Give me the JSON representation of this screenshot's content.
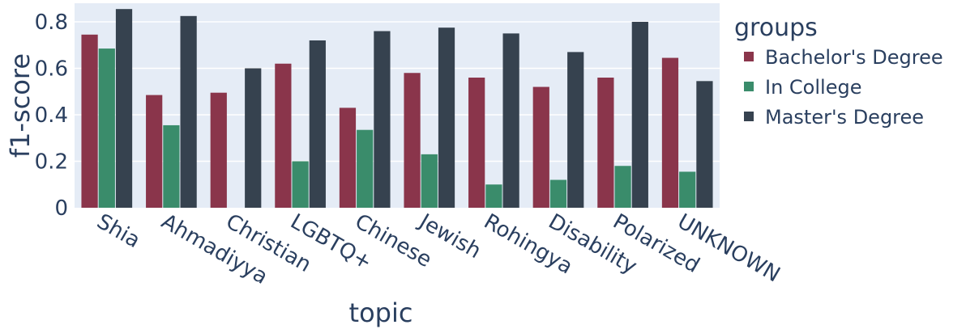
{
  "chart_data": {
    "type": "bar",
    "xlabel": "topic",
    "ylabel": "f1-score",
    "ylim": [
      0,
      0.88
    ],
    "yticks": [
      0,
      0.2,
      0.4,
      0.6,
      0.8
    ],
    "ytick_labels": [
      "0",
      "0.2",
      "0.4",
      "0.6",
      "0.8"
    ],
    "grid": true,
    "legend_title": "groups",
    "legend_position": "right",
    "categories": [
      "Shia",
      "Ahmadiyya",
      "Christian",
      "LGBTQ+",
      "Chinese",
      "Jewish",
      "Rohingya",
      "Disability",
      "Polarized",
      "UNKNOWN"
    ],
    "series": [
      {
        "name": "Bachelor's Degree",
        "color": "#8a354b",
        "values": [
          0.745,
          0.485,
          0.495,
          0.62,
          0.43,
          0.58,
          0.56,
          0.52,
          0.56,
          0.645
        ]
      },
      {
        "name": "In College",
        "color": "#3a8c6b",
        "values": [
          0.685,
          0.355,
          null,
          0.2,
          0.335,
          0.23,
          0.1,
          0.12,
          0.18,
          0.155
        ]
      },
      {
        "name": "Master's Degree",
        "color": "#36424f",
        "values": [
          0.855,
          0.825,
          0.6,
          0.72,
          0.76,
          0.775,
          0.75,
          0.67,
          0.8,
          0.545
        ]
      }
    ],
    "plot_bg": "#e5ecf6"
  }
}
